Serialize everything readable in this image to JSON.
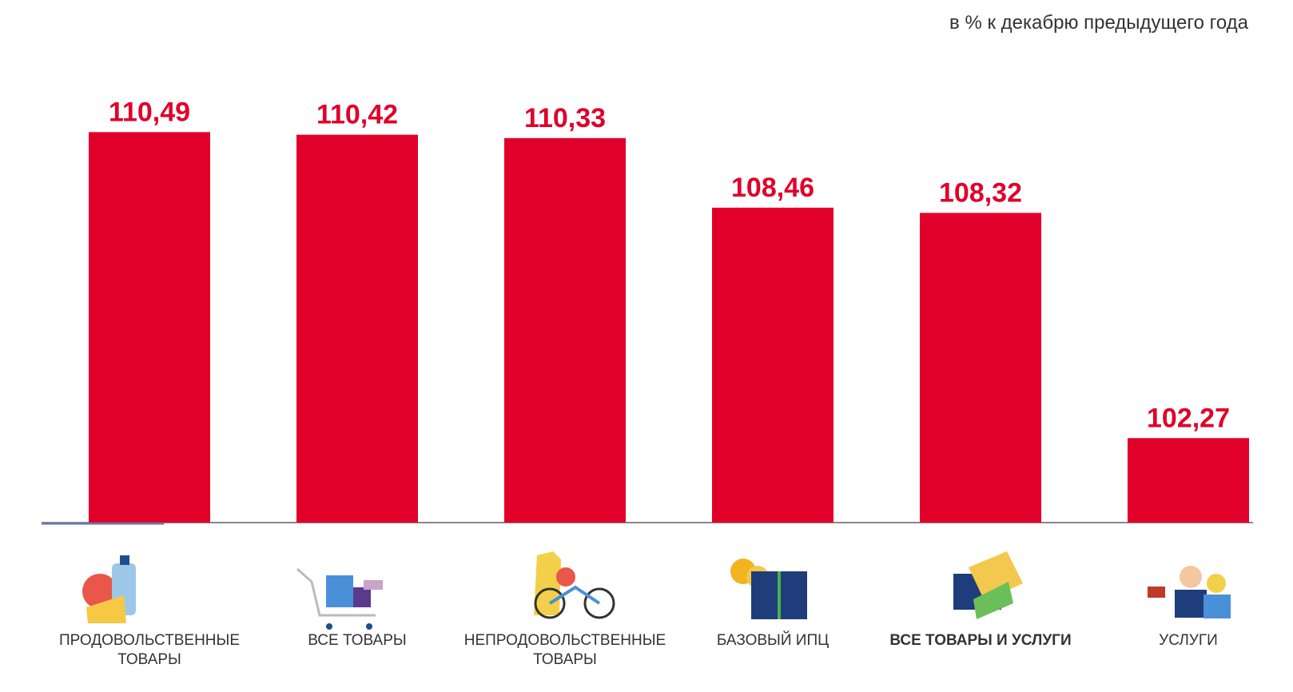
{
  "chart_data": {
    "type": "bar",
    "subtitle": "в % к декабрю предыдущего года",
    "categories": [
      "ПРОДОВОЛЬСТВЕННЫЕ ТОВАРЫ",
      "ВСЕ ТОВАРЫ",
      "НЕПРОДОВОЛЬСТВЕННЫЕ ТОВАРЫ",
      "БАЗОВЫЙ ИПЦ",
      "ВСЕ ТОВАРЫ И УСЛУГИ",
      "УСЛУГИ"
    ],
    "values": [
      110.49,
      110.42,
      110.33,
      108.46,
      108.32,
      102.27
    ],
    "value_labels": [
      "110,49",
      "110,42",
      "110,33",
      "108,46",
      "108,32",
      "102,27"
    ],
    "color": "#e0002a",
    "ylim": [
      100,
      112
    ]
  }
}
